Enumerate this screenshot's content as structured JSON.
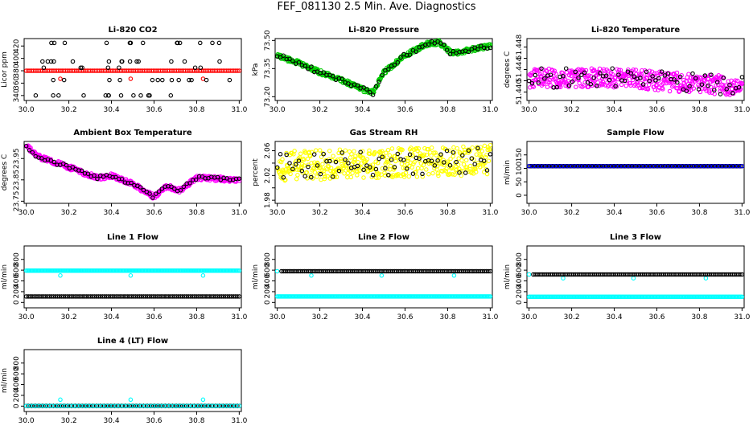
{
  "page": {
    "title": "FEF_081130  2.5 Min. Ave. Diagnostics"
  },
  "colors": {
    "black": "#000000",
    "red": "#ff0000",
    "green": "#00cc00",
    "magenta": "#ff00ff",
    "yellow": "#ffff00",
    "blue": "#0000ff",
    "cyan": "#00ffff"
  },
  "chart_data": [
    {
      "type": "scatter",
      "title": "Li-820 CO2",
      "ylabel": "Licor ppm",
      "xlim": [
        29.99,
        31.01
      ],
      "ylim": [
        332,
        432
      ],
      "xticks": [
        30.0,
        30.2,
        30.4,
        30.6,
        30.8,
        31.0
      ],
      "yticks": [
        340,
        360,
        380,
        400,
        420
      ],
      "series": [
        {
          "name": "reference",
          "color": "red",
          "pattern": "flat",
          "values": [
            380
          ],
          "fill_to": 380,
          "spikes": [
            [
              30.16,
              367
            ],
            [
              30.49,
              367
            ],
            [
              30.83,
              367
            ]
          ]
        },
        {
          "name": "scattered",
          "color": "black",
          "pattern": "levels",
          "values": [
            340,
            365,
            385,
            395,
            425
          ],
          "from": 30.02,
          "to": 30.98,
          "n": 60
        }
      ]
    },
    {
      "type": "scatter",
      "title": "Li-820 Pressure",
      "ylabel": "kPa",
      "xlim": [
        29.99,
        31.01
      ],
      "ylim": [
        73.18,
        73.51
      ],
      "xticks": [
        30.0,
        30.2,
        30.4,
        30.6,
        30.8,
        31.0
      ],
      "yticks": [
        73.2,
        73.35,
        73.5
      ],
      "yticklabels": [
        "73.20",
        "73.35",
        "73.50"
      ],
      "extra_labels": [
        "73.50"
      ],
      "series": [
        {
          "name": "pressure",
          "color": "green",
          "pattern": "trace",
          "noise": 0.012,
          "from": 30.0,
          "to": 31.0,
          "n": 380,
          "values": [
            [
              30.0,
              73.42
            ],
            [
              30.1,
              73.38
            ],
            [
              30.2,
              73.33
            ],
            [
              30.3,
              73.29
            ],
            [
              30.4,
              73.24
            ],
            [
              30.45,
              73.22
            ],
            [
              30.5,
              73.33
            ],
            [
              30.6,
              73.42
            ],
            [
              30.7,
              73.48
            ],
            [
              30.76,
              73.49
            ],
            [
              30.82,
              73.43
            ],
            [
              30.9,
              73.45
            ],
            [
              31.0,
              73.47
            ]
          ]
        },
        {
          "name": "pressure-black",
          "color": "black",
          "pattern": "trace",
          "noise": 0.012,
          "from": 30.0,
          "to": 31.0,
          "n": 70,
          "values": [
            [
              30.0,
              73.42
            ],
            [
              30.1,
              73.38
            ],
            [
              30.2,
              73.33
            ],
            [
              30.3,
              73.29
            ],
            [
              30.4,
              73.24
            ],
            [
              30.45,
              73.22
            ],
            [
              30.5,
              73.33
            ],
            [
              30.6,
              73.42
            ],
            [
              30.7,
              73.48
            ],
            [
              30.76,
              73.49
            ],
            [
              30.82,
              73.43
            ],
            [
              30.9,
              73.45
            ],
            [
              31.0,
              73.47
            ]
          ]
        }
      ]
    },
    {
      "type": "scatter",
      "title": "Li-820 Temperature",
      "ylabel": "degrees C",
      "xlim": [
        29.99,
        31.01
      ],
      "ylim": [
        51.4385,
        51.4495
      ],
      "xticks": [
        30.0,
        30.2,
        30.4,
        30.6,
        30.8,
        31.0
      ],
      "yticks": [
        51.44,
        51.442,
        51.444,
        51.446,
        51.448
      ],
      "yticklabels": [
        "51.440",
        "",
        "51.444",
        "",
        "51.448"
      ],
      "series": [
        {
          "name": "temp-magenta",
          "color": "magenta",
          "pattern": "trace",
          "noise": 0.0017,
          "from": 30.0,
          "to": 31.0,
          "n": 420,
          "values": [
            [
              30.0,
              51.4425
            ],
            [
              30.4,
              51.4425
            ],
            [
              30.8,
              51.4415
            ],
            [
              31.0,
              51.441
            ]
          ]
        },
        {
          "name": "temp-black",
          "color": "black",
          "pattern": "trace",
          "noise": 0.0017,
          "from": 30.0,
          "to": 31.0,
          "n": 70,
          "values": [
            [
              30.0,
              51.4425
            ],
            [
              30.4,
              51.4425
            ],
            [
              30.8,
              51.4415
            ],
            [
              31.0,
              51.441
            ]
          ]
        }
      ]
    },
    {
      "type": "scatter",
      "title": "Ambient Box Temperature",
      "ylabel": "degrees C",
      "xlim": [
        29.99,
        31.01
      ],
      "ylim": [
        23.74,
        24.03
      ],
      "xticks": [
        30.0,
        30.2,
        30.4,
        30.6,
        30.8,
        31.0
      ],
      "yticks": [
        23.75,
        23.85,
        23.95
      ],
      "yticklabels": [
        "23.75",
        "23.85",
        "23.95"
      ],
      "series": [
        {
          "name": "box-magenta",
          "color": "magenta",
          "pattern": "trace",
          "noise": 0.011,
          "from": 30.0,
          "to": 31.0,
          "n": 400,
          "values": [
            [
              30.0,
              24.01
            ],
            [
              30.05,
              23.96
            ],
            [
              30.2,
              23.91
            ],
            [
              30.33,
              23.86
            ],
            [
              30.4,
              23.87
            ],
            [
              30.5,
              23.83
            ],
            [
              30.6,
              23.77
            ],
            [
              30.66,
              23.82
            ],
            [
              30.72,
              23.8
            ],
            [
              30.8,
              23.86
            ],
            [
              31.0,
              23.85
            ]
          ]
        },
        {
          "name": "box-black",
          "color": "black",
          "pattern": "trace",
          "noise": 0.008,
          "from": 30.0,
          "to": 31.0,
          "n": 70,
          "values": [
            [
              30.0,
              24.01
            ],
            [
              30.05,
              23.96
            ],
            [
              30.2,
              23.91
            ],
            [
              30.33,
              23.86
            ],
            [
              30.4,
              23.87
            ],
            [
              30.5,
              23.83
            ],
            [
              30.6,
              23.77
            ],
            [
              30.66,
              23.82
            ],
            [
              30.72,
              23.8
            ],
            [
              30.8,
              23.86
            ],
            [
              31.0,
              23.85
            ]
          ]
        }
      ]
    },
    {
      "type": "scatter",
      "title": "Gas Stream RH",
      "ylabel": "percent",
      "xlim": [
        29.99,
        31.01
      ],
      "ylim": [
        1.975,
        2.075
      ],
      "xticks": [
        30.0,
        30.2,
        30.4,
        30.6,
        30.8,
        31.0
      ],
      "yticks": [
        1.98,
        2.0,
        2.02,
        2.04,
        2.06
      ],
      "yticklabels": [
        "1.98",
        "",
        "2.02",
        "",
        "2.06"
      ],
      "series": [
        {
          "name": "rh-yellow",
          "color": "yellow",
          "pattern": "trace",
          "noise": 0.024,
          "from": 30.0,
          "to": 31.0,
          "n": 420,
          "values": [
            [
              30.0,
              2.035
            ],
            [
              30.5,
              2.04
            ],
            [
              31.0,
              2.045
            ]
          ]
        },
        {
          "name": "rh-black",
          "color": "black",
          "pattern": "trace",
          "noise": 0.02,
          "from": 30.0,
          "to": 31.0,
          "n": 70,
          "values": [
            [
              30.0,
              2.035
            ],
            [
              30.5,
              2.04
            ],
            [
              31.0,
              2.045
            ]
          ]
        }
      ]
    },
    {
      "type": "scatter",
      "title": "Sample Flow",
      "ylabel": "ml/min",
      "xlim": [
        29.99,
        31.01
      ],
      "ylim": [
        -30,
        200
      ],
      "xticks": [
        30.0,
        30.2,
        30.4,
        30.6,
        30.8,
        31.0
      ],
      "yticks": [
        0,
        50,
        100,
        150
      ],
      "series": [
        {
          "name": "sample-black",
          "color": "black",
          "pattern": "flat",
          "values": [
            108
          ],
          "fill_to": 108,
          "n": 150
        },
        {
          "name": "sample-blue",
          "color": "blue",
          "pattern": "flat",
          "values": [
            108
          ],
          "fill_to": 108,
          "n": 60
        }
      ]
    },
    {
      "type": "scatter",
      "title": "Line 1 Flow",
      "ylabel": "ml/min",
      "xlim": [
        29.99,
        31.01
      ],
      "ylim": [
        -100,
        1050
      ],
      "xticks": [
        30.0,
        30.2,
        30.4,
        30.6,
        30.8,
        31.0
      ],
      "yticks": [
        0,
        200,
        400,
        600,
        800
      ],
      "series": [
        {
          "name": "line1-cyan",
          "color": "cyan",
          "pattern": "flat",
          "values": [
            590
          ],
          "fill_to": 590,
          "n": 200,
          "spikes": [
            [
              30.16,
              500
            ],
            [
              30.49,
              500
            ],
            [
              30.83,
              500
            ]
          ]
        },
        {
          "name": "line1-black",
          "color": "black",
          "pattern": "flat",
          "values": [
            110
          ],
          "fill_to": 110,
          "n": 110
        }
      ]
    },
    {
      "type": "scatter",
      "title": "Line 2 Flow",
      "ylabel": "ml/min",
      "xlim": [
        29.99,
        31.01
      ],
      "ylim": [
        -100,
        1050
      ],
      "xticks": [
        30.0,
        30.2,
        30.4,
        30.6,
        30.8,
        31.0
      ],
      "yticks": [
        0,
        200,
        400,
        600,
        800
      ],
      "series": [
        {
          "name": "line2-cyan",
          "color": "cyan",
          "pattern": "flat",
          "values": [
            110
          ],
          "fill_to": 110,
          "n": 200,
          "spikes": [
            [
              30.0,
              580
            ],
            [
              30.16,
              500
            ],
            [
              30.49,
              500
            ],
            [
              30.83,
              500
            ]
          ]
        },
        {
          "name": "line2-black",
          "color": "black",
          "pattern": "flat",
          "values": [
            580
          ],
          "fill_to": 580,
          "n": 110,
          "from": 30.02
        }
      ]
    },
    {
      "type": "scatter",
      "title": "Line 3 Flow",
      "ylabel": "ml/min",
      "xlim": [
        29.99,
        31.01
      ],
      "ylim": [
        -100,
        1050
      ],
      "xticks": [
        30.0,
        30.2,
        30.4,
        30.6,
        30.8,
        31.0
      ],
      "yticks": [
        0,
        200,
        400,
        600,
        800
      ],
      "series": [
        {
          "name": "line3-cyan",
          "color": "cyan",
          "pattern": "flat",
          "values": [
            105
          ],
          "fill_to": 105,
          "n": 200,
          "spikes": [
            [
              30.0,
              520
            ],
            [
              30.16,
              450
            ],
            [
              30.49,
              450
            ],
            [
              30.83,
              450
            ]
          ]
        },
        {
          "name": "line3-black",
          "color": "black",
          "pattern": "flat",
          "values": [
            520
          ],
          "fill_to": 520,
          "n": 110,
          "from": 30.02
        }
      ]
    },
    {
      "type": "scatter",
      "title": "Line 4 (LT) Flow",
      "ylabel": "ml/min",
      "xlim": [
        29.99,
        31.01
      ],
      "ylim": [
        -100,
        1050
      ],
      "xticks": [
        30.0,
        30.2,
        30.4,
        30.6,
        30.8,
        31.0
      ],
      "yticks": [
        0,
        200,
        400,
        600,
        800
      ],
      "series": [
        {
          "name": "line4-black",
          "color": "black",
          "pattern": "flat",
          "values": [
            5
          ],
          "fill_to": 5,
          "n": 110
        },
        {
          "name": "line4-cyan",
          "color": "cyan",
          "pattern": "flat",
          "values": [
            5
          ],
          "fill_to": 5,
          "n": 60,
          "spikes": [
            [
              30.16,
              120
            ],
            [
              30.49,
              120
            ],
            [
              30.83,
              120
            ]
          ]
        }
      ]
    }
  ]
}
